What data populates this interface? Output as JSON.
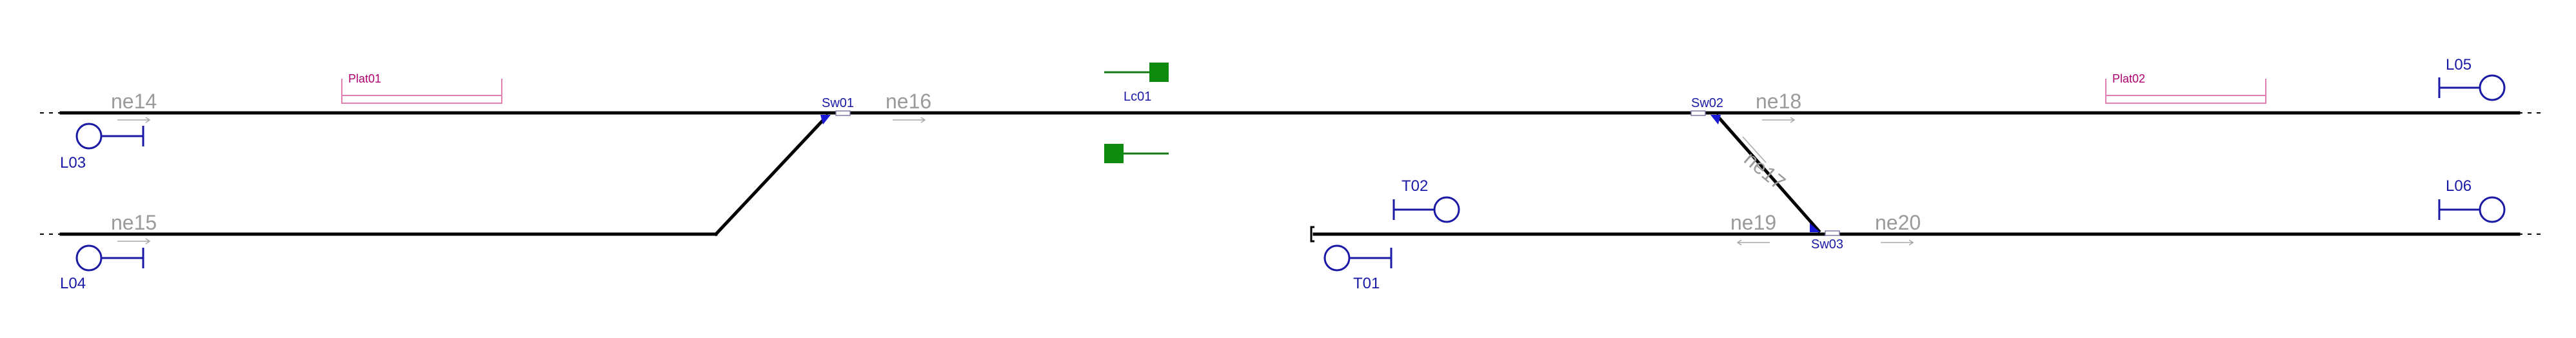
{
  "segments": {
    "ne14": "ne14",
    "ne15": "ne15",
    "ne16": "ne16",
    "ne17": "ne17",
    "ne18": "ne18",
    "ne19": "ne19",
    "ne20": "ne20"
  },
  "switches": {
    "sw01": "Sw01",
    "sw02": "Sw02",
    "sw03": "Sw03"
  },
  "signals": {
    "l03": "L03",
    "l04": "L04",
    "l05": "L05",
    "l06": "L06",
    "t01": "T01",
    "t02": "T02"
  },
  "platforms": {
    "plat01": "Plat01",
    "plat02": "Plat02"
  },
  "level_crossing": {
    "lc01": "Lc01"
  },
  "colors": {
    "track": "#000000",
    "signal": "#1a1aa6",
    "segment_label": "#9a9a9a",
    "platform": "#e07fb0",
    "level_crossing": "#0e8a0e",
    "switch": "#1a1ad6"
  }
}
